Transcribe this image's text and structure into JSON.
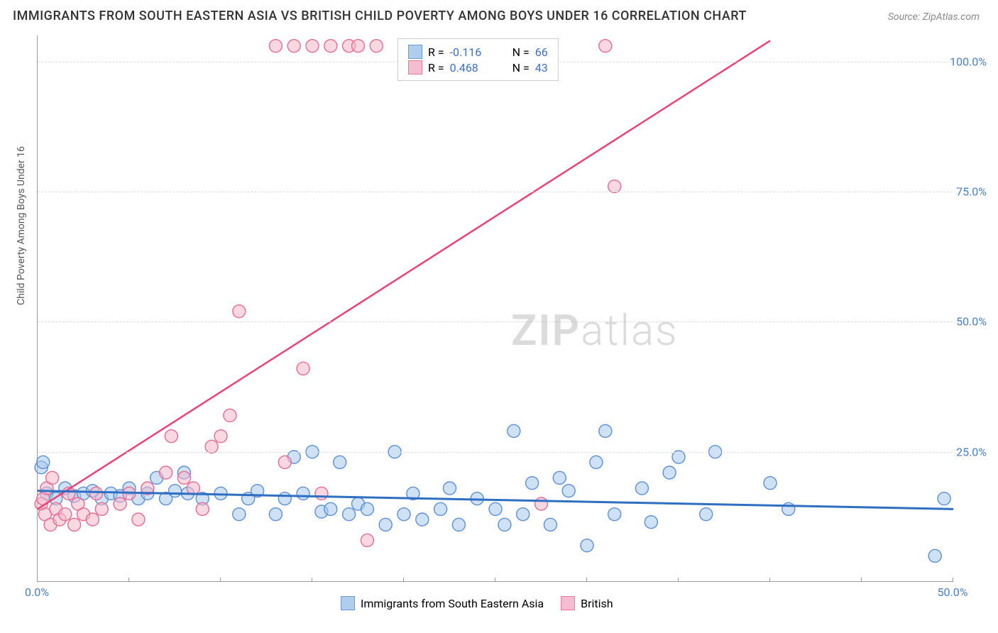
{
  "title": "IMMIGRANTS FROM SOUTH EASTERN ASIA VS BRITISH CHILD POVERTY AMONG BOYS UNDER 16 CORRELATION CHART",
  "source_label": "Source: ",
  "source_name": "ZipAtlas.com",
  "ylabel": "Child Poverty Among Boys Under 16",
  "watermark_a": "ZIP",
  "watermark_b": "atlas",
  "chart": {
    "type": "scatter",
    "xlim": [
      0,
      50
    ],
    "ylim": [
      0,
      105
    ],
    "xtick_positions": [
      0,
      5,
      10,
      15,
      20,
      25,
      30,
      35,
      40,
      45,
      50
    ],
    "xtick_labels": {
      "0": "0.0%",
      "50": "50.0%"
    },
    "ytick_positions": [
      25,
      50,
      75,
      100
    ],
    "ytick_labels": {
      "25": "25.0%",
      "50": "50.0%",
      "75": "75.0%",
      "100": "100.0%"
    },
    "axis_tick_color": "#4a7fc4",
    "grid_color": "#dddddd",
    "background_color": "#ffffff",
    "series": [
      {
        "name": "Immigrants from South Eastern Asia",
        "color_fill": "#a8c8ec",
        "color_stroke": "#5b8fd6",
        "fill_opacity": 0.55,
        "marker_radius": 9,
        "R": -0.116,
        "N": 66,
        "trend": {
          "x1": 0,
          "y1": 17.5,
          "x2": 50,
          "y2": 14.0,
          "stroke": "#2f6fc2",
          "width": 3
        },
        "points": [
          [
            0.2,
            22
          ],
          [
            0.3,
            23
          ],
          [
            0.5,
            17
          ],
          [
            1.0,
            16
          ],
          [
            1.5,
            18
          ],
          [
            2.0,
            16.5
          ],
          [
            2.5,
            17
          ],
          [
            3.0,
            17.5
          ],
          [
            3.5,
            16
          ],
          [
            4.0,
            17
          ],
          [
            4.5,
            16.5
          ],
          [
            5.0,
            18
          ],
          [
            5.5,
            16
          ],
          [
            6.0,
            17
          ],
          [
            6.5,
            20
          ],
          [
            7.0,
            16
          ],
          [
            7.5,
            17.5
          ],
          [
            8.0,
            21
          ],
          [
            8.2,
            17
          ],
          [
            9.0,
            16
          ],
          [
            10.0,
            17
          ],
          [
            11.0,
            13
          ],
          [
            11.5,
            16
          ],
          [
            12.0,
            17.5
          ],
          [
            13.0,
            13
          ],
          [
            13.5,
            16
          ],
          [
            14.0,
            24
          ],
          [
            14.5,
            17
          ],
          [
            15.0,
            25
          ],
          [
            15.5,
            13.5
          ],
          [
            16.0,
            14
          ],
          [
            16.5,
            23
          ],
          [
            17.0,
            13
          ],
          [
            17.5,
            15
          ],
          [
            18.0,
            14
          ],
          [
            19.0,
            11
          ],
          [
            19.5,
            25
          ],
          [
            20.0,
            13
          ],
          [
            20.5,
            17
          ],
          [
            21.0,
            12
          ],
          [
            22.0,
            14
          ],
          [
            22.5,
            18
          ],
          [
            23.0,
            11
          ],
          [
            24.0,
            16
          ],
          [
            25.0,
            14
          ],
          [
            25.5,
            11
          ],
          [
            26.0,
            29
          ],
          [
            26.5,
            13
          ],
          [
            27.0,
            19
          ],
          [
            28.0,
            11
          ],
          [
            29.0,
            17.5
          ],
          [
            30.0,
            7
          ],
          [
            30.5,
            23
          ],
          [
            31.0,
            29
          ],
          [
            31.5,
            13
          ],
          [
            33.0,
            18
          ],
          [
            33.5,
            11.5
          ],
          [
            34.5,
            21
          ],
          [
            35.0,
            24
          ],
          [
            36.5,
            13
          ],
          [
            37.0,
            25
          ],
          [
            40.0,
            19
          ],
          [
            41.0,
            14
          ],
          [
            49.0,
            5
          ],
          [
            49.5,
            16
          ],
          [
            28.5,
            20
          ]
        ]
      },
      {
        "name": "British",
        "color_fill": "#f5b8cb",
        "color_stroke": "#e56b94",
        "fill_opacity": 0.55,
        "marker_radius": 9,
        "R": 0.468,
        "N": 43,
        "trend": {
          "x1": 0,
          "y1": 14,
          "x2": 40,
          "y2": 104,
          "stroke": "#e8437a",
          "width": 2.5
        },
        "points": [
          [
            0.2,
            15
          ],
          [
            0.3,
            16
          ],
          [
            0.4,
            13
          ],
          [
            0.5,
            18
          ],
          [
            0.7,
            11
          ],
          [
            0.8,
            20
          ],
          [
            1.0,
            14
          ],
          [
            1.2,
            12
          ],
          [
            1.5,
            13
          ],
          [
            1.7,
            17
          ],
          [
            2.0,
            11
          ],
          [
            2.2,
            15
          ],
          [
            2.5,
            13
          ],
          [
            3.0,
            12
          ],
          [
            3.2,
            17
          ],
          [
            3.5,
            14
          ],
          [
            4.5,
            15
          ],
          [
            5.0,
            17
          ],
          [
            5.5,
            12
          ],
          [
            6.0,
            18
          ],
          [
            7.0,
            21
          ],
          [
            7.3,
            28
          ],
          [
            8.0,
            20
          ],
          [
            8.5,
            18
          ],
          [
            9.0,
            14
          ],
          [
            9.5,
            26
          ],
          [
            10.0,
            28
          ],
          [
            10.5,
            32
          ],
          [
            11.0,
            52
          ],
          [
            13.0,
            103
          ],
          [
            13.5,
            23
          ],
          [
            14.0,
            103
          ],
          [
            14.5,
            41
          ],
          [
            15.0,
            103
          ],
          [
            15.5,
            17
          ],
          [
            16.0,
            103
          ],
          [
            17.0,
            103
          ],
          [
            17.5,
            103
          ],
          [
            18.5,
            103
          ],
          [
            18.0,
            8
          ],
          [
            27.5,
            15
          ],
          [
            31.0,
            103
          ],
          [
            31.5,
            76
          ]
        ]
      }
    ]
  },
  "legend_top": {
    "r_label": "R =",
    "n_label": "N ="
  },
  "colors": {
    "text_dark": "#333333",
    "text_mid": "#555555",
    "blue_value": "#3b6fc4"
  }
}
